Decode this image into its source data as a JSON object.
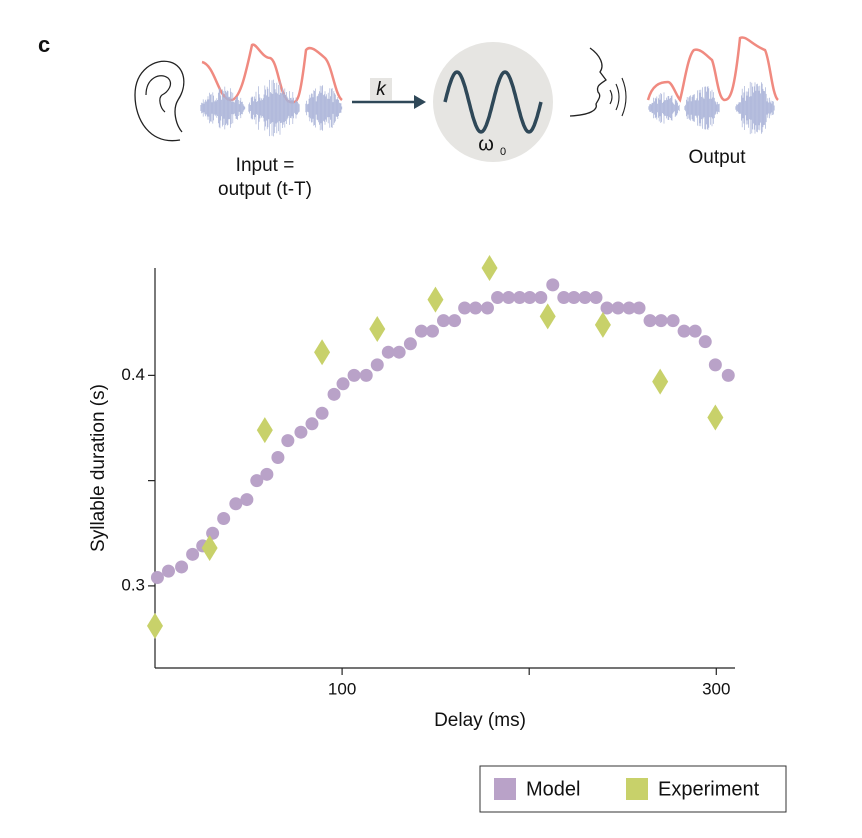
{
  "panel_label": "c",
  "diagram": {
    "input_label_1": "Input =",
    "input_label_2": "output (t-T)",
    "gain": "k",
    "omega": "ω",
    "omega_sub": "0",
    "output_label": "Output"
  },
  "chart_data": {
    "type": "scatter",
    "xlabel": "Delay (ms)",
    "ylabel": "Syllable duration (s)",
    "xlim": [
      0,
      310
    ],
    "xticks": [
      100,
      300
    ],
    "xminor_ticks": [
      200
    ],
    "ylim": [
      0.261,
      0.451
    ],
    "yticks": [
      0.3,
      0.4
    ],
    "yminor_ticks": [
      0.35
    ],
    "series": [
      {
        "name": "Model",
        "color": "#b9a2c8",
        "marker": "circle",
        "x": [
          1.3,
          7.2,
          14.2,
          20.1,
          25.5,
          30.8,
          36.7,
          43.2,
          49.1,
          54.4,
          59.8,
          65.7,
          71.0,
          78.0,
          83.9,
          89.3,
          95.7,
          100.5,
          106.4,
          112.9,
          118.8,
          124.7,
          130.5,
          136.5,
          142.4,
          148.3,
          154.2,
          160.1,
          165.5,
          171.3,
          177.7,
          183.1,
          189.0,
          194.9,
          200.3,
          206.2,
          212.6,
          218.5,
          223.9,
          229.8,
          235.7,
          241.6,
          247.5,
          253.4,
          258.7,
          264.6,
          270.5,
          276.9,
          282.8,
          288.7,
          294.1,
          299.5,
          306.4
        ],
        "values": [
          0.304,
          0.307,
          0.309,
          0.315,
          0.319,
          0.325,
          0.332,
          0.339,
          0.341,
          0.35,
          0.353,
          0.361,
          0.369,
          0.373,
          0.377,
          0.382,
          0.391,
          0.396,
          0.4,
          0.4,
          0.405,
          0.411,
          0.411,
          0.415,
          0.421,
          0.421,
          0.426,
          0.426,
          0.432,
          0.432,
          0.432,
          0.437,
          0.437,
          0.437,
          0.437,
          0.437,
          0.443,
          0.437,
          0.437,
          0.437,
          0.437,
          0.432,
          0.432,
          0.432,
          0.432,
          0.426,
          0.426,
          0.426,
          0.421,
          0.421,
          0.416,
          0.405,
          0.4
        ]
      },
      {
        "name": "Experiment",
        "color": "#c8d16a",
        "marker": "diamond",
        "x": [
          0,
          29.2,
          58.7,
          89.3,
          118.8,
          149.9,
          178.8,
          209.9,
          239.4,
          270.0,
          299.5
        ],
        "values": [
          0.281,
          0.318,
          0.374,
          0.411,
          0.422,
          0.436,
          0.451,
          0.428,
          0.424,
          0.397,
          0.38
        ]
      }
    ]
  }
}
